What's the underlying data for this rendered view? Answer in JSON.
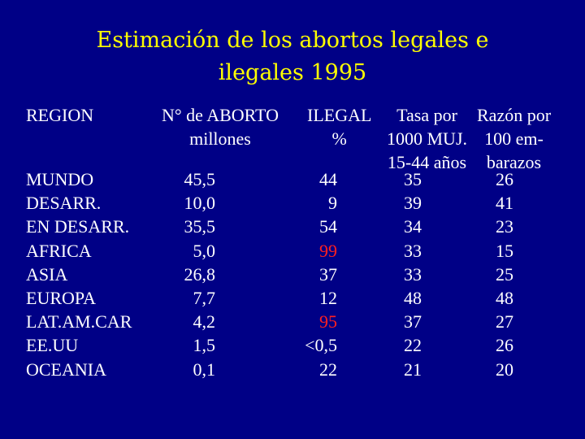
{
  "title": {
    "line1": "Estimación de los abortos legales e",
    "line2": "ilegales 1995"
  },
  "headers": {
    "region": "REGION",
    "abortos": [
      "N° de ABORTO",
      "millones"
    ],
    "ilegal": [
      "ILEGAL",
      "%"
    ],
    "tasa": [
      "Tasa por",
      "1000 MUJ.",
      "15-44 años"
    ],
    "razon": [
      "Razón por",
      "100 em-",
      "barazos"
    ]
  },
  "rows": [
    {
      "region": "MUNDO",
      "abortos": "45,5",
      "ilegal": "44",
      "tasa": "35",
      "razon": "26",
      "highlight": false
    },
    {
      "region": "DESARR.",
      "abortos": "10,0",
      "ilegal": "9",
      "tasa": "39",
      "razon": "41",
      "highlight": false
    },
    {
      "region": "EN DESARR.",
      "abortos": "35,5",
      "ilegal": "54",
      "tasa": "34",
      "razon": "23",
      "highlight": false
    },
    {
      "region": "AFRICA",
      "abortos": "5,0",
      "ilegal": "99",
      "tasa": "33",
      "razon": "15",
      "highlight": true
    },
    {
      "region": "ASIA",
      "abortos": "26,8",
      "ilegal": "37",
      "tasa": "33",
      "razon": "25",
      "highlight": false
    },
    {
      "region": "EUROPA",
      "abortos": "7,7",
      "ilegal": "12",
      "tasa": "48",
      "razon": "48",
      "highlight": false
    },
    {
      "region": "LAT.AM.CAR",
      "abortos": "4,2",
      "ilegal": "95",
      "tasa": "37",
      "razon": "27",
      "highlight": true
    },
    {
      "region": "EE.UU",
      "abortos": "1,5",
      "ilegal": "<0,5",
      "tasa": "22",
      "razon": "26",
      "highlight": false
    },
    {
      "region": "OCEANIA",
      "abortos": "0,1",
      "ilegal": "22",
      "tasa": "21",
      "razon": "20",
      "highlight": false
    }
  ],
  "colors": {
    "background": "#000086",
    "title": "#ffff00",
    "text": "#ffffff",
    "highlight": "#ff2020"
  }
}
